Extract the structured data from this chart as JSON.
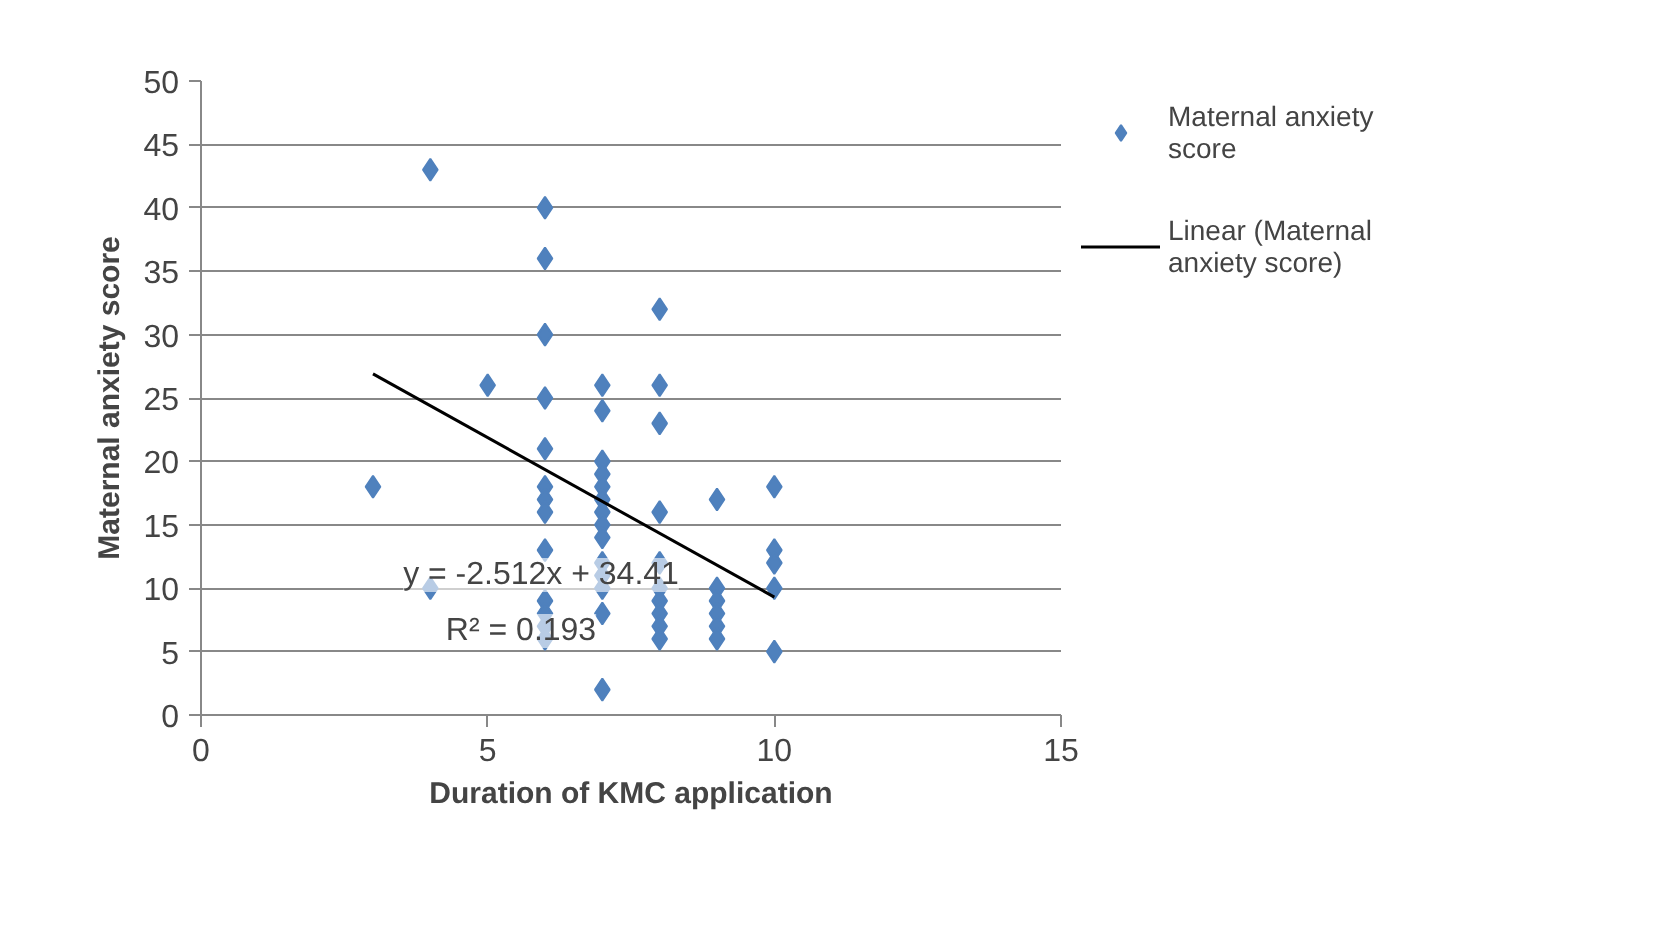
{
  "chart_data": {
    "type": "scatter",
    "xlabel": "Duration of KMC application",
    "ylabel": "Maternal anxiety score",
    "xlim": [
      0,
      15
    ],
    "xticks": [
      0,
      5,
      10,
      15
    ],
    "ylim": [
      0,
      50
    ],
    "yticks": [
      0,
      5,
      10,
      15,
      20,
      25,
      30,
      35,
      40,
      45,
      50
    ],
    "grid": "y",
    "legend": "right",
    "series": [
      {
        "name": "Maternal anxiety score",
        "color": "#4f81bd",
        "marker": "diamond",
        "x": [
          3,
          4,
          4,
          5,
          6,
          6,
          6,
          6,
          6,
          6,
          6,
          6,
          6,
          6,
          6,
          6,
          6,
          7,
          7,
          7,
          7,
          7,
          7,
          7,
          7,
          7,
          7,
          7,
          7,
          7,
          7,
          8,
          8,
          8,
          8,
          8,
          8,
          8,
          8,
          8,
          8,
          9,
          9,
          9,
          9,
          9,
          9,
          10,
          10,
          10,
          10,
          10
        ],
        "values": [
          18,
          43,
          10,
          26,
          40,
          36,
          30,
          25,
          21,
          18,
          17,
          16,
          13,
          9,
          8,
          7,
          6,
          26,
          24,
          20,
          19,
          18,
          17,
          16,
          15,
          14,
          12,
          11,
          10,
          8,
          2,
          32,
          26,
          23,
          16,
          12,
          10,
          9,
          8,
          7,
          6,
          17,
          10,
          9,
          8,
          7,
          6,
          18,
          13,
          12,
          10,
          5
        ]
      },
      {
        "name": "Linear (Maternal anxiety score)",
        "color": "#000000",
        "type": "line",
        "line_style": "solid",
        "x": [
          3,
          10
        ],
        "values": [
          26.9,
          9.3
        ]
      }
    ],
    "annotations": [
      "y = -2.512x + 34.41",
      "R² = 0.193"
    ]
  }
}
